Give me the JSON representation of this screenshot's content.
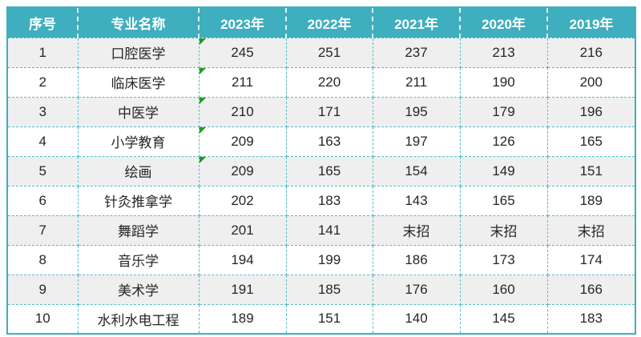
{
  "chart_data": {
    "type": "table",
    "columns": [
      "序号",
      "专业名称",
      "2023年",
      "2022年",
      "2021年",
      "2020年",
      "2019年"
    ],
    "rows": [
      [
        "1",
        "口腔医学",
        "245",
        "251",
        "237",
        "213",
        "216"
      ],
      [
        "2",
        "临床医学",
        "211",
        "220",
        "211",
        "190",
        "200"
      ],
      [
        "3",
        "中医学",
        "210",
        "171",
        "195",
        "179",
        "196"
      ],
      [
        "4",
        "小学教育",
        "209",
        "163",
        "197",
        "126",
        "165"
      ],
      [
        "5",
        "绘画",
        "209",
        "165",
        "154",
        "149",
        "151"
      ],
      [
        "6",
        "针灸推拿学",
        "202",
        "183",
        "143",
        "165",
        "189"
      ],
      [
        "7",
        "舞蹈学",
        "201",
        "141",
        "末招",
        "末招",
        "末招"
      ],
      [
        "8",
        "音乐学",
        "194",
        "199",
        "186",
        "173",
        "174"
      ],
      [
        "9",
        "美术学",
        "191",
        "185",
        "176",
        "160",
        "166"
      ],
      [
        "10",
        "水利水电工程",
        "189",
        "151",
        "140",
        "145",
        "183"
      ]
    ],
    "comment_markers": {
      "column": "2023年",
      "row_numbers": [
        "1",
        "2",
        "3",
        "4",
        "5"
      ]
    },
    "layout": {
      "grid": "dashed",
      "striped_rows": true
    }
  },
  "colors": {
    "header_bg": "#3FAEBE",
    "header_text": "#FFFFFF",
    "row_odd_bg": "#EFEFEF",
    "row_even_bg": "#FFFFFF",
    "grid_dashed": "#52BAC7",
    "outer_border": "#3FAEBE",
    "body_text": "#262626",
    "comment_marker": "#1E9E1E"
  }
}
